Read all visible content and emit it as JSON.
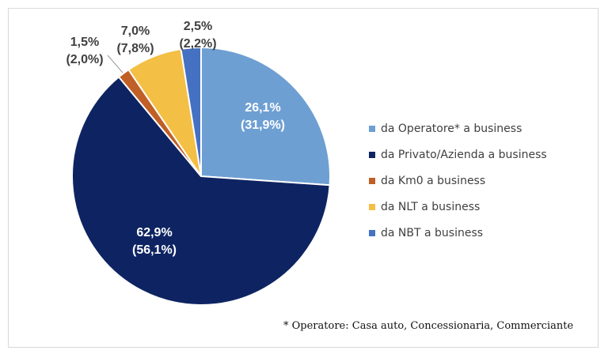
{
  "chart_data": {
    "type": "pie",
    "start_angle_deg": 0,
    "direction": "clockwise",
    "slices": [
      {
        "name": "da Operatore* a business",
        "value": 26.1,
        "value_label": "26,1%",
        "secondary_label": "(31,9%)",
        "color": "#6e9fd3",
        "label_color": "#ffffff"
      },
      {
        "name": "da Privato/Azienda a business",
        "value": 62.9,
        "value_label": "62,9%",
        "secondary_label": "(56,1%)",
        "color": "#0e2462",
        "label_color": "#ffffff"
      },
      {
        "name": "da Km0 a business",
        "value": 1.5,
        "value_label": "1,5%",
        "secondary_label": "(2,0%)",
        "color": "#c05f26",
        "label_color": "#404040"
      },
      {
        "name": "da NLT a business",
        "value": 7.0,
        "value_label": "7,0%",
        "secondary_label": "(7,8%)",
        "color": "#f3bf44",
        "label_color": "#404040"
      },
      {
        "name": "da NBT a business",
        "value": 2.5,
        "value_label": "2,5%",
        "secondary_label": "(2,2%)",
        "color": "#4571c2",
        "label_color": "#404040"
      }
    ],
    "legend_position": "right"
  },
  "footnote": "* Operatore: Casa auto, Concessionaria, Commerciante"
}
